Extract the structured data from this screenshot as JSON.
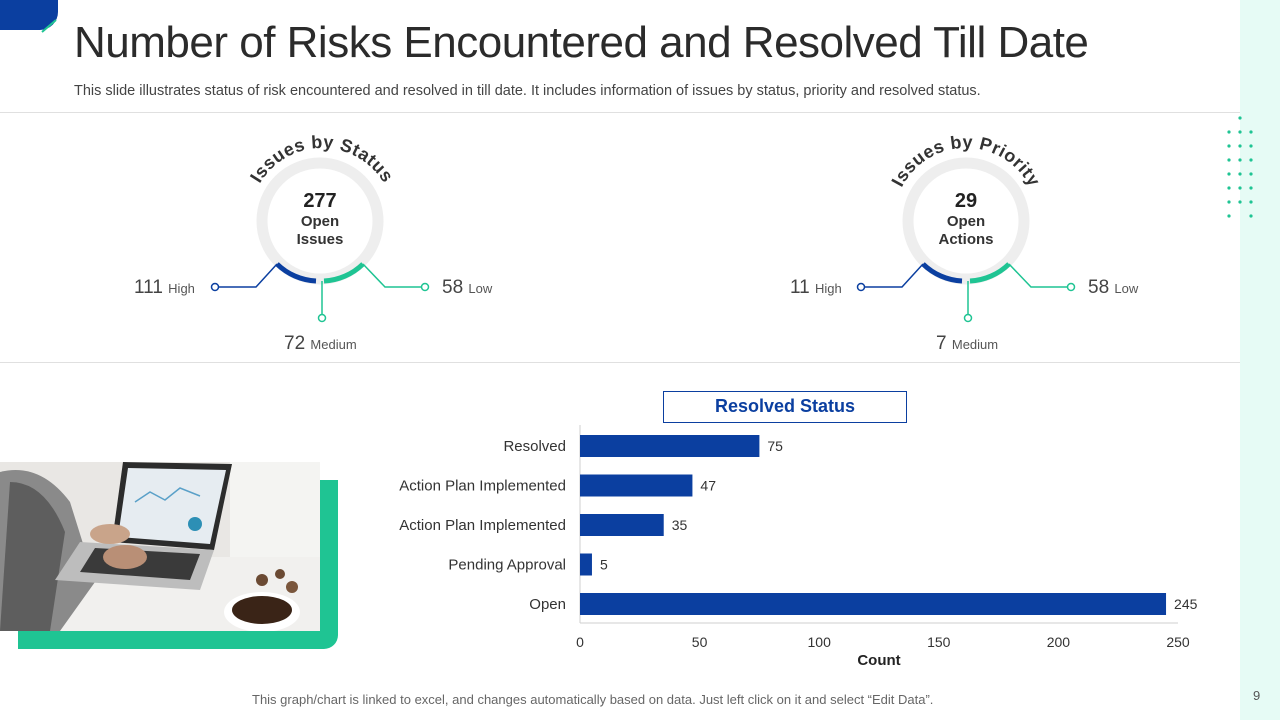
{
  "title": "Number of Risks Encountered and Resolved Till Date",
  "subtitle": "This slide illustrates status of risk encountered and resolved in till date. It includes information of issues by status, priority and resolved status.",
  "page_number": "9",
  "footer_note": "This graph/chart is linked to excel,  and changes  automatically based on data. Just left click on it and select “Edit Data”.",
  "colors": {
    "blue": "#0b3fa0",
    "teal": "#1fc493",
    "ring": "#eeeeee"
  },
  "status": {
    "heading": "Issues by Status",
    "center_value": "277",
    "center_label_1": "Open",
    "center_label_2": "Issues",
    "high_value": "111",
    "high_label": "High",
    "medium_value": "72",
    "medium_label": "Medium",
    "low_value": "58",
    "low_label": "Low"
  },
  "priority": {
    "heading": "Issues by Priority",
    "center_value": "29",
    "center_label_1": "Open",
    "center_label_2": "Actions",
    "high_value": "11",
    "high_label": "High",
    "medium_value": "7",
    "medium_label": "Medium",
    "low_value": "58",
    "low_label": "Low"
  },
  "chart_data": {
    "type": "bar",
    "orientation": "horizontal",
    "title": "Resolved Status",
    "categories": [
      "Resolved",
      "Action Plan Implemented",
      "Action Plan Implemented",
      "Pending Approval",
      "Open"
    ],
    "values": [
      75,
      47,
      35,
      5,
      245
    ],
    "xlabel": "Count",
    "ylabel": "",
    "xlim": [
      0,
      250
    ],
    "xticks": [
      0,
      50,
      100,
      150,
      200,
      250
    ],
    "grid": false,
    "data_labels": true
  }
}
